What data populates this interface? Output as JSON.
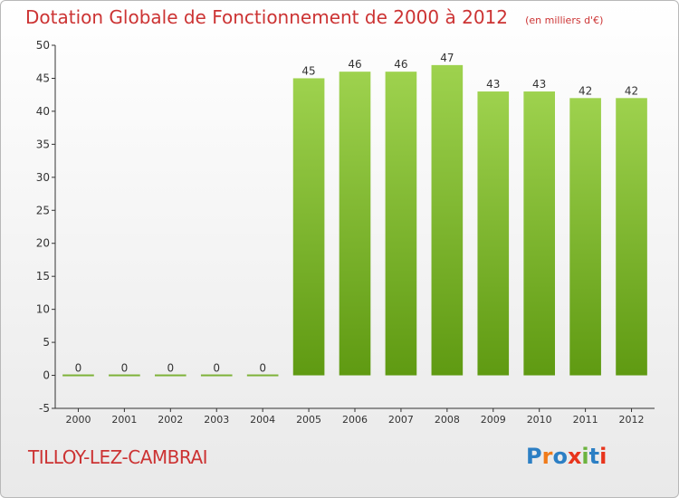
{
  "header": {
    "title": "Dotation Globale de Fonctionnement de 2000 à 2012",
    "unit_note": "(en milliers d'€)"
  },
  "commune": {
    "name": "TILLOY-LEZ-CAMBRAI"
  },
  "logo": {
    "text": "Proxiti",
    "letter_colors": [
      "#2c7fc4",
      "#f07b1a",
      "#2c7fc4",
      "#e8341c",
      "#6cb33e",
      "#2c7fc4",
      "#e8341c"
    ]
  },
  "colors": {
    "title": "#cc3333",
    "bar_top": "#9ed24e",
    "bar_bottom": "#5f9a12",
    "zero_line": "#7db238",
    "axis": "#333333"
  },
  "chart_data": {
    "type": "bar",
    "title": "Dotation Globale de Fonctionnement de 2000 à 2012",
    "subtitle": "(en milliers d'€)",
    "xlabel": "",
    "ylabel": "",
    "categories": [
      "2000",
      "2001",
      "2002",
      "2003",
      "2004",
      "2005",
      "2006",
      "2007",
      "2008",
      "2009",
      "2010",
      "2011",
      "2012"
    ],
    "values": [
      0,
      0,
      0,
      0,
      0,
      45,
      46,
      46,
      47,
      43,
      43,
      42,
      42
    ],
    "ylim": [
      -5,
      50
    ],
    "yticks": [
      -5,
      0,
      5,
      10,
      15,
      20,
      25,
      30,
      35,
      40,
      45,
      50
    ],
    "grid": false,
    "data_labels": true
  }
}
